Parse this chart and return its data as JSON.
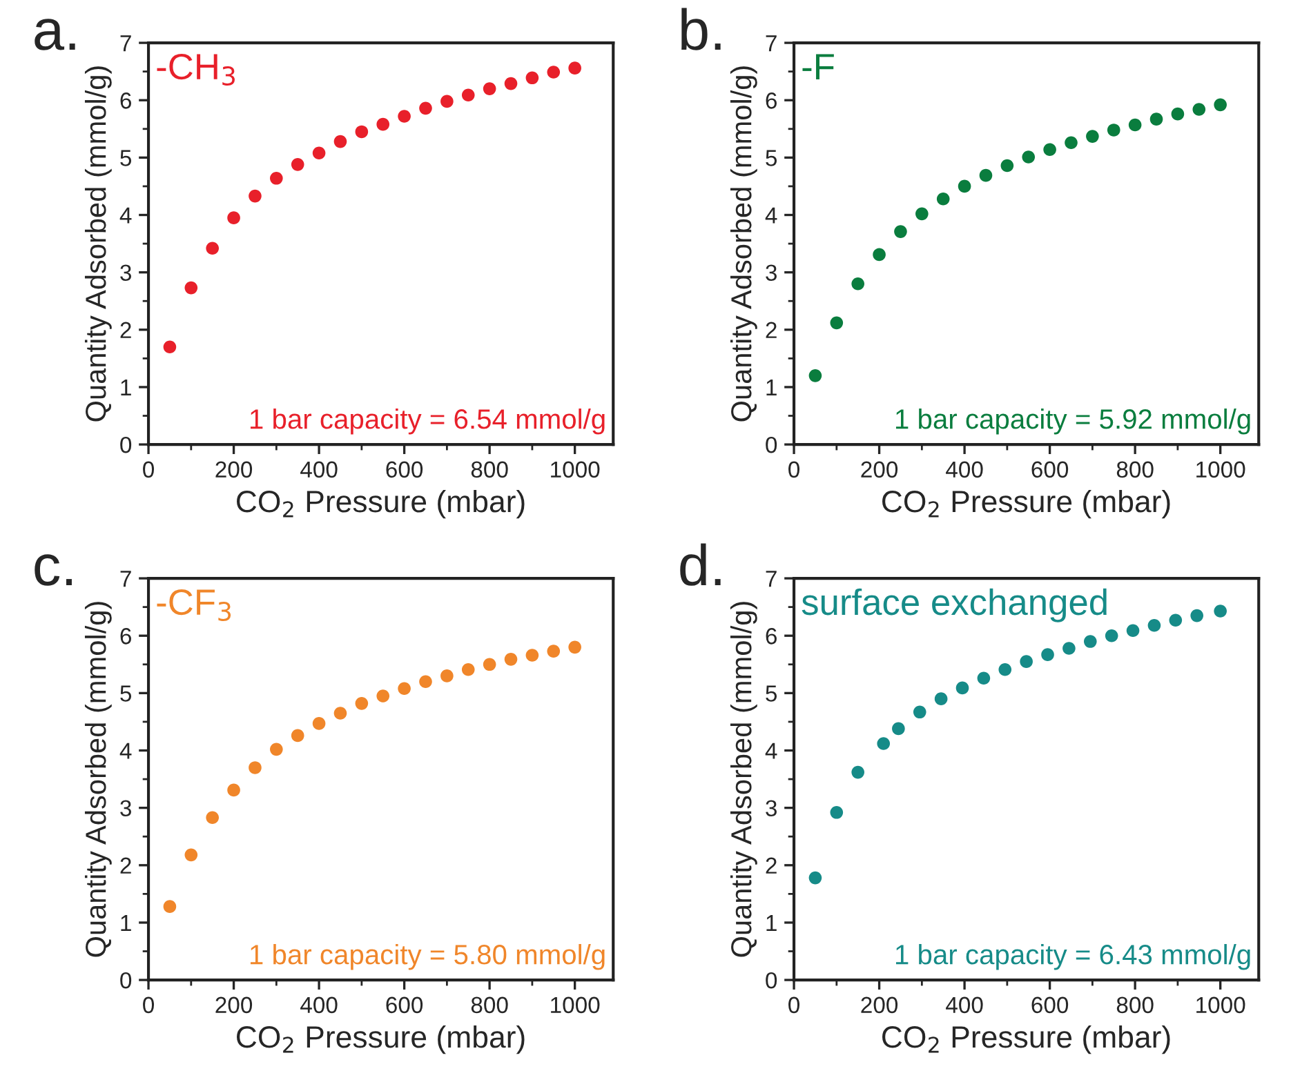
{
  "chart_data": [
    {
      "type": "scatter",
      "xlabel": "CO$_{2}$ Pressure (mbar)",
      "ylabel": "Quantity Adsorbed (mmol/g)",
      "annotations": [
        "a.",
        "-CH$_{3}$",
        "1 bar capacity = 6.54 mmol/g"
      ],
      "xlim": [
        0,
        1090
      ],
      "ylim": [
        0,
        7
      ],
      "xticks": [
        0,
        200,
        400,
        600,
        800,
        1000
      ],
      "yticks": [
        0,
        1,
        2,
        3,
        4,
        5,
        6,
        7
      ],
      "grid": false,
      "legend": false,
      "marker": "circle",
      "series": [
        {
          "color": "#e8202a",
          "x": [
            50,
            100,
            150,
            200,
            250,
            300,
            350,
            400,
            450,
            500,
            550,
            600,
            650,
            700,
            750,
            800,
            850,
            900,
            950,
            1000
          ],
          "values": [
            1.7,
            2.73,
            3.42,
            3.95,
            4.33,
            4.64,
            4.88,
            5.08,
            5.28,
            5.45,
            5.58,
            5.72,
            5.86,
            5.98,
            6.09,
            6.2,
            6.29,
            6.39,
            6.49,
            6.56
          ]
        }
      ]
    },
    {
      "type": "scatter",
      "xlabel": "CO$_{2}$ Pressure (mbar)",
      "ylabel": "Quantity Adsorbed (mmol/g)",
      "annotations": [
        "b.",
        "-F",
        "1 bar capacity = 5.92 mmol/g"
      ],
      "xlim": [
        0,
        1090
      ],
      "ylim": [
        0,
        7
      ],
      "xticks": [
        0,
        200,
        400,
        600,
        800,
        1000
      ],
      "yticks": [
        0,
        1,
        2,
        3,
        4,
        5,
        6,
        7
      ],
      "grid": false,
      "legend": false,
      "marker": "circle",
      "series": [
        {
          "color": "#0a7d3e",
          "x": [
            50,
            100,
            150,
            200,
            250,
            300,
            350,
            400,
            450,
            500,
            550,
            600,
            650,
            700,
            750,
            800,
            850,
            900,
            950,
            1000
          ],
          "values": [
            1.2,
            2.12,
            2.8,
            3.31,
            3.71,
            4.02,
            4.28,
            4.5,
            4.69,
            4.86,
            5.01,
            5.14,
            5.26,
            5.37,
            5.48,
            5.57,
            5.67,
            5.76,
            5.84,
            5.92
          ]
        }
      ]
    },
    {
      "type": "scatter",
      "xlabel": "CO$_{2}$ Pressure (mbar)",
      "ylabel": "Quantity Adsorbed (mmol/g)",
      "annotations": [
        "c.",
        "-CF$_{3}$",
        "1 bar capacity = 5.80 mmol/g"
      ],
      "xlim": [
        0,
        1090
      ],
      "ylim": [
        0,
        7
      ],
      "xticks": [
        0,
        200,
        400,
        600,
        800,
        1000
      ],
      "yticks": [
        0,
        1,
        2,
        3,
        4,
        5,
        6,
        7
      ],
      "grid": false,
      "legend": false,
      "marker": "circle",
      "series": [
        {
          "color": "#f0862a",
          "x": [
            50,
            100,
            150,
            200,
            250,
            300,
            350,
            400,
            450,
            500,
            550,
            600,
            650,
            700,
            750,
            800,
            850,
            900,
            950,
            1000
          ],
          "values": [
            1.28,
            2.18,
            2.83,
            3.31,
            3.7,
            4.02,
            4.26,
            4.47,
            4.65,
            4.82,
            4.95,
            5.08,
            5.2,
            5.3,
            5.41,
            5.5,
            5.59,
            5.66,
            5.73,
            5.8
          ]
        }
      ]
    },
    {
      "type": "scatter",
      "xlabel": "CO$_{2}$ Pressure (mbar)",
      "ylabel": "Quantity Adsorbed (mmol/g)",
      "annotations": [
        "d.",
        "surface exchanged",
        "1 bar capacity = 6.43 mmol/g"
      ],
      "xlim": [
        0,
        1090
      ],
      "ylim": [
        0,
        7
      ],
      "xticks": [
        0,
        200,
        400,
        600,
        800,
        1000
      ],
      "yticks": [
        0,
        1,
        2,
        3,
        4,
        5,
        6,
        7
      ],
      "grid": false,
      "legend": false,
      "marker": "circle",
      "series": [
        {
          "color": "#168b88",
          "x": [
            50,
            100,
            150,
            210,
            245,
            295,
            345,
            395,
            445,
            495,
            545,
            595,
            645,
            695,
            745,
            795,
            845,
            895,
            945,
            1000
          ],
          "values": [
            1.78,
            2.92,
            3.62,
            4.12,
            4.38,
            4.67,
            4.9,
            5.09,
            5.26,
            5.41,
            5.55,
            5.67,
            5.78,
            5.9,
            6.0,
            6.09,
            6.18,
            6.27,
            6.35,
            6.43
          ]
        }
      ]
    }
  ]
}
